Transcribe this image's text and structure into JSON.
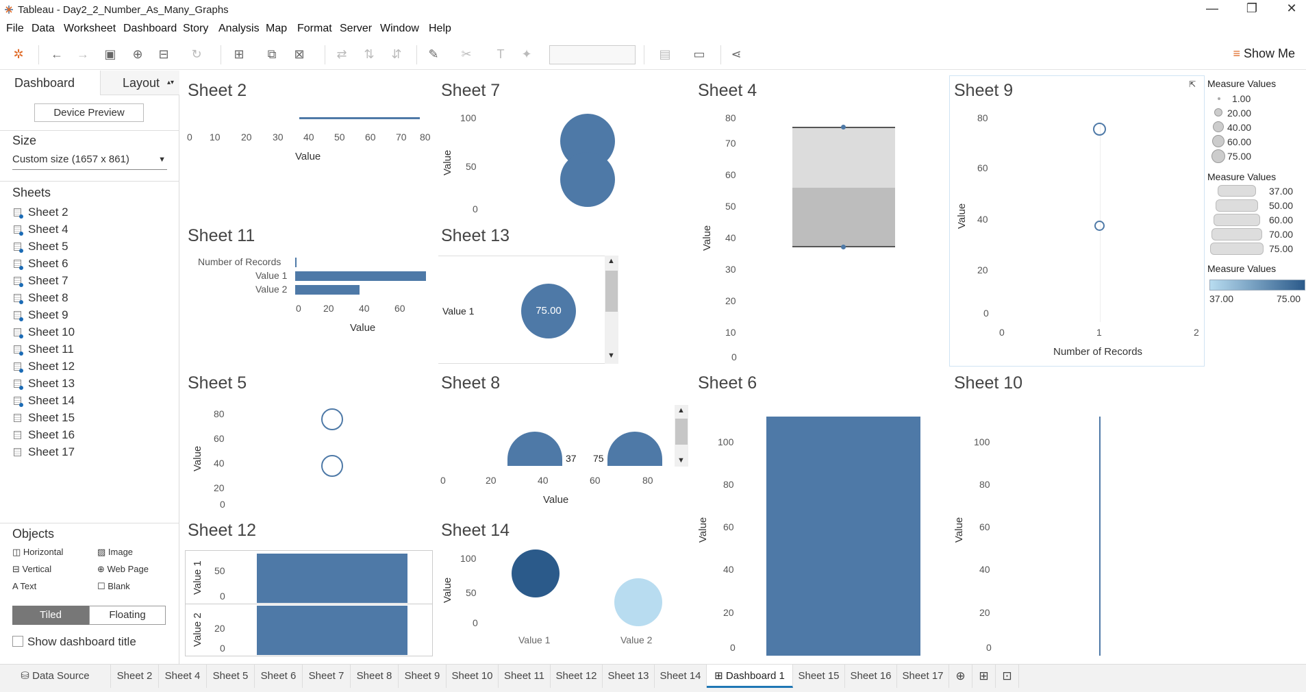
{
  "window": {
    "title": "Tableau - Day2_2_Number_As_Many_Graphs",
    "minimize": "—",
    "restore": "❐",
    "close": "✕"
  },
  "menu": [
    "File",
    "Data",
    "Worksheet",
    "Dashboard",
    "Story",
    "Analysis",
    "Map",
    "Format",
    "Server",
    "Window",
    "Help"
  ],
  "toolbar": {
    "show_me": "Show Me"
  },
  "left": {
    "tab_dashboard": "Dashboard",
    "tab_layout": "Layout",
    "device_preview": "Device Preview",
    "size_heading": "Size",
    "size_value": "Custom size (1657 x 861)",
    "sheets_heading": "Sheets",
    "sheets": [
      "Sheet 2",
      "Sheet 4",
      "Sheet 5",
      "Sheet 6",
      "Sheet 7",
      "Sheet 8",
      "Sheet 9",
      "Sheet 10",
      "Sheet 11",
      "Sheet 12",
      "Sheet 13",
      "Sheet 14",
      "Sheet 15",
      "Sheet 16",
      "Sheet 17"
    ],
    "objects_heading": "Objects",
    "objects": [
      "Horizontal",
      "Image",
      "Vertical",
      "Web Page",
      "Text",
      "Blank"
    ],
    "tiled": "Tiled",
    "floating": "Floating",
    "show_title": "Show dashboard title"
  },
  "colors": {
    "accent": "#4e79a7",
    "dark": "#2b5a8a",
    "light": "#b8dcf0"
  },
  "sheets": {
    "s2": {
      "title": "Sheet 2",
      "xlabel": "Value",
      "ticks": [
        "0",
        "10",
        "20",
        "30",
        "40",
        "50",
        "60",
        "70",
        "80"
      ]
    },
    "s7": {
      "title": "Sheet 7",
      "ylabel": "Value",
      "ticks": [
        "100",
        "50",
        "0"
      ]
    },
    "s4": {
      "title": "Sheet 4",
      "ylabel": "Value",
      "ticks": [
        "80",
        "70",
        "60",
        "50",
        "40",
        "30",
        "20",
        "10",
        "0"
      ]
    },
    "s9": {
      "title": "Sheet 9",
      "ylabel": "Value",
      "xlabel": "Number of Records",
      "yticks": [
        "80",
        "60",
        "40",
        "20",
        "0"
      ],
      "xticks": [
        "0",
        "1",
        "2"
      ]
    },
    "s11": {
      "title": "Sheet 11",
      "xlabel": "Value",
      "rows": [
        "Number of Records",
        "Value 1",
        "Value 2"
      ],
      "ticks": [
        "0",
        "20",
        "40",
        "60"
      ]
    },
    "s13": {
      "title": "Sheet 13",
      "row": "Value 1",
      "bubble": "75.00"
    },
    "s5": {
      "title": "Sheet 5",
      "ylabel": "Value",
      "ticks": [
        "80",
        "60",
        "40",
        "20",
        "0"
      ]
    },
    "s8": {
      "title": "Sheet 8",
      "xlabel": "Value",
      "ticks": [
        "0",
        "20",
        "40",
        "60",
        "80"
      ],
      "labels": [
        "37",
        "75"
      ]
    },
    "s6": {
      "title": "Sheet 6",
      "ylabel": "Value",
      "ticks": [
        "100",
        "80",
        "60",
        "40",
        "20",
        "0"
      ]
    },
    "s10": {
      "title": "Sheet 10",
      "ylabel": "Value",
      "ticks": [
        "100",
        "80",
        "60",
        "40",
        "20",
        "0"
      ]
    },
    "s12": {
      "title": "Sheet 12",
      "row1": "Value 1",
      "row2": "Value 2",
      "ticks1": [
        "50",
        "0"
      ],
      "ticks2": [
        "20",
        "0"
      ]
    },
    "s14": {
      "title": "Sheet 14",
      "ylabel": "Value",
      "ticks": [
        "100",
        "50",
        "0"
      ],
      "cats": [
        "Value 1",
        "Value 2"
      ]
    }
  },
  "legends": {
    "size_title": "Measure Values",
    "size_items": [
      "1.00",
      "20.00",
      "40.00",
      "60.00",
      "75.00"
    ],
    "shape_title": "Measure Values",
    "shape_items": [
      "37.00",
      "50.00",
      "60.00",
      "70.00",
      "75.00"
    ],
    "color_title": "Measure Values",
    "color_min": "37.00",
    "color_max": "75.00"
  },
  "bottom_tabs": [
    "Data Source",
    "Sheet 2",
    "Sheet 4",
    "Sheet 5",
    "Sheet 6",
    "Sheet 7",
    "Sheet 8",
    "Sheet 9",
    "Sheet 10",
    "Sheet 11",
    "Sheet 12",
    "Sheet 13",
    "Sheet 14",
    "Dashboard 1",
    "Sheet 15",
    "Sheet 16",
    "Sheet 17"
  ],
  "chart_data": [
    {
      "type": "line",
      "title": "Sheet 2",
      "xlabel": "Value",
      "x_range": [
        37,
        75
      ],
      "xlim": [
        0,
        80
      ]
    },
    {
      "type": "scatter",
      "title": "Sheet 7",
      "ylabel": "Value",
      "values": [
        75,
        37
      ],
      "ylim": [
        0,
        100
      ]
    },
    {
      "type": "bar",
      "title": "Sheet 4",
      "ylabel": "Value",
      "band_low": 37,
      "band_mid": 55,
      "band_high": 75,
      "ylim": [
        0,
        80
      ]
    },
    {
      "type": "scatter",
      "title": "Sheet 9",
      "xlabel": "Number of Records",
      "ylabel": "Value",
      "x": [
        1,
        1
      ],
      "y": [
        75,
        37
      ]
    },
    {
      "type": "bar",
      "title": "Sheet 11",
      "categories": [
        "Number of Records",
        "Value 1",
        "Value 2"
      ],
      "values": [
        1,
        75,
        37
      ]
    },
    {
      "type": "scatter",
      "title": "Sheet 5",
      "ylabel": "Value",
      "values": [
        75,
        37
      ]
    },
    {
      "type": "scatter",
      "title": "Sheet 8",
      "xlabel": "Value",
      "x": [
        37,
        75
      ]
    },
    {
      "type": "bar",
      "title": "Sheet 6",
      "ylabel": "Value",
      "values": [
        112
      ]
    },
    {
      "type": "bar",
      "title": "Sheet 12",
      "categories": [
        "Value 1",
        "Value 2"
      ],
      "values": [
        75,
        37
      ]
    },
    {
      "type": "scatter",
      "title": "Sheet 14",
      "categories": [
        "Value 1",
        "Value 2"
      ],
      "values": [
        75,
        37
      ]
    }
  ]
}
